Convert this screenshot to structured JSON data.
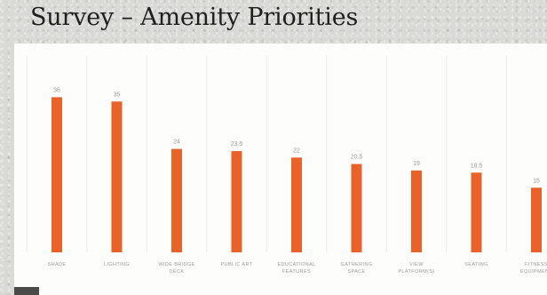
{
  "title": "Survey – Amenity Priorities",
  "chart_data": {
    "type": "bar",
    "title": "Survey – Amenity Priorities",
    "categories": [
      "SHADE",
      "LIGHTING",
      "WIDE BRIDGE DECK",
      "PUBLIC ART",
      "EDUCATIONAL FEATURES",
      "GATHERING SPACE",
      "VIEW PLATFORM(S)",
      "SEATING",
      "FITNESS EQUIPMENT"
    ],
    "category_lines": [
      [
        "SHADE"
      ],
      [
        "LIGHTING"
      ],
      [
        "WIDE BRIDGE",
        "DECK"
      ],
      [
        "PUBLIC ART"
      ],
      [
        "EDUCATIONAL",
        "FEATURES"
      ],
      [
        "GATHERING",
        "SPACE"
      ],
      [
        "VIEW",
        "PLATFORM(S)"
      ],
      [
        "SEATING"
      ],
      [
        "FITNESS",
        "EQUIPMENT"
      ]
    ],
    "values": [
      36,
      35,
      24,
      23.5,
      22,
      20.5,
      19,
      18.5,
      15
    ],
    "ylim": [
      0,
      40
    ],
    "xlabel": "",
    "ylabel": "",
    "grid": "vertical",
    "bar_color": "#e8622a",
    "label_color": "#9a9a9a",
    "grid_color": "#ececec"
  }
}
